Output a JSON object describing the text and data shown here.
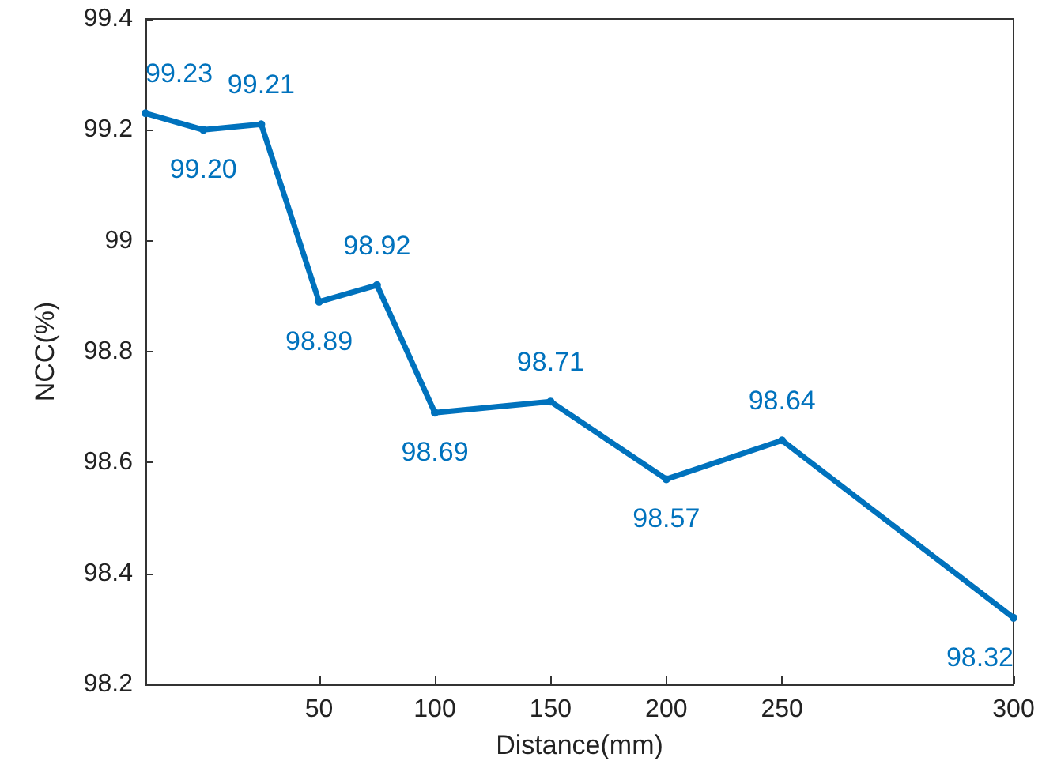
{
  "chart_data": {
    "type": "line",
    "xlabel": "Distance(mm)",
    "ylabel": "NCC(%)",
    "categories": [
      null,
      null,
      null,
      "50",
      null,
      "100",
      null,
      "150",
      null,
      "200",
      null,
      "250",
      null,
      null,
      null,
      "300"
    ],
    "ylim": [
      98.2,
      99.4
    ],
    "yticks": [
      98.2,
      98.4,
      98.6,
      98.8,
      99,
      99.2,
      99.4
    ],
    "series": [
      {
        "color": "#0072bd",
        "values": [
          99.23,
          99.2,
          99.21,
          98.89,
          98.92,
          98.69,
          null,
          98.71,
          null,
          98.57,
          null,
          98.64,
          null,
          null,
          null,
          98.32
        ],
        "value_labels": [
          "99.23",
          "99.20",
          "99.21",
          "98.89",
          "98.92",
          "98.69",
          null,
          "98.71",
          null,
          "98.57",
          null,
          "98.64",
          null,
          null,
          null,
          "98.32"
        ]
      }
    ],
    "marker": "circle",
    "line_style": "solid",
    "grid": false
  }
}
